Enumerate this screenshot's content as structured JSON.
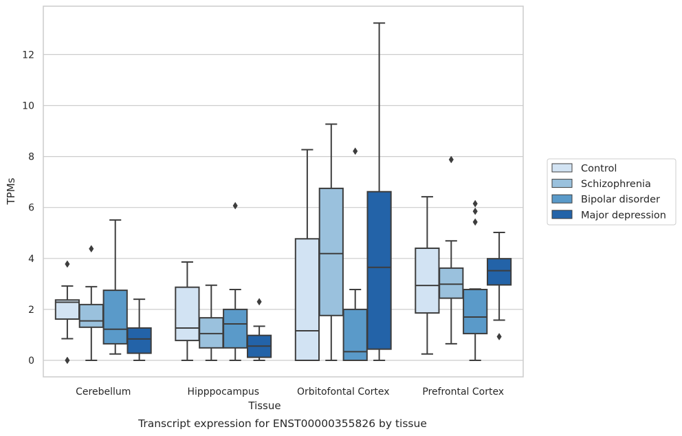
{
  "caption": "Transcript expression for ENST00000355826 by tissue",
  "chart_data": {
    "type": "box",
    "xlabel": "Tissue",
    "ylabel": "TPMs",
    "ylim": [
      -0.65,
      13.9
    ],
    "yticks": [
      0,
      2,
      4,
      6,
      8,
      10,
      12
    ],
    "grid": "horizontal",
    "legend_position": "right",
    "categories": [
      "Cerebellum",
      "Hipppocampus",
      "Orbitofontal Cortex",
      "Prefrontal Cortex"
    ],
    "series": [
      {
        "name": "Control",
        "color": "#d2e3f3",
        "boxes": [
          {
            "whislo": 0.85,
            "q1": 1.62,
            "med": 2.28,
            "q3": 2.37,
            "whishi": 2.92,
            "fliers": [
              3.78,
              0.0
            ]
          },
          {
            "whislo": 0.0,
            "q1": 0.78,
            "med": 1.27,
            "q3": 2.87,
            "whishi": 3.86,
            "fliers": []
          },
          {
            "whislo": 0.0,
            "q1": 0.0,
            "med": 1.16,
            "q3": 4.77,
            "whishi": 8.27,
            "fliers": []
          },
          {
            "whislo": 0.25,
            "q1": 1.86,
            "med": 2.94,
            "q3": 4.4,
            "whishi": 6.42,
            "fliers": []
          }
        ]
      },
      {
        "name": "Schizophrenia",
        "color": "#9ac1dd",
        "boxes": [
          {
            "whislo": 0.0,
            "q1": 1.3,
            "med": 1.55,
            "q3": 2.19,
            "whishi": 2.89,
            "fliers": [
              4.38
            ]
          },
          {
            "whislo": 0.0,
            "q1": 0.49,
            "med": 1.05,
            "q3": 1.67,
            "whishi": 2.95,
            "fliers": []
          },
          {
            "whislo": 0.0,
            "q1": 1.76,
            "med": 4.19,
            "q3": 6.75,
            "whishi": 9.27,
            "fliers": []
          },
          {
            "whislo": 0.65,
            "q1": 2.44,
            "med": 2.99,
            "q3": 3.62,
            "whishi": 4.69,
            "fliers": [
              7.88
            ]
          }
        ]
      },
      {
        "name": "Bipolar disorder",
        "color": "#5a9ac9",
        "boxes": [
          {
            "whislo": 0.25,
            "q1": 0.65,
            "med": 1.22,
            "q3": 2.75,
            "whishi": 5.51,
            "fliers": []
          },
          {
            "whislo": 0.0,
            "q1": 0.49,
            "med": 1.43,
            "q3": 2.0,
            "whishi": 2.78,
            "fliers": [
              6.07
            ]
          },
          {
            "whislo": 0.0,
            "q1": 0.0,
            "med": 0.34,
            "q3": 2.0,
            "whishi": 2.78,
            "fliers": [
              8.21
            ]
          },
          {
            "whislo": 0.0,
            "q1": 1.05,
            "med": 1.7,
            "q3": 2.78,
            "whishi": 2.8,
            "fliers": [
              6.15,
              5.85,
              5.43
            ]
          }
        ]
      },
      {
        "name": "Major depression",
        "color": "#2363a8",
        "boxes": [
          {
            "whislo": 0.0,
            "q1": 0.28,
            "med": 0.84,
            "q3": 1.27,
            "whishi": 2.4,
            "fliers": []
          },
          {
            "whislo": 0.0,
            "q1": 0.12,
            "med": 0.56,
            "q3": 0.98,
            "whishi": 1.34,
            "fliers": [
              2.3
            ]
          },
          {
            "whislo": 0.0,
            "q1": 0.44,
            "med": 3.65,
            "q3": 6.62,
            "whishi": 13.24,
            "fliers": []
          },
          {
            "whislo": 1.58,
            "q1": 2.96,
            "med": 3.52,
            "q3": 3.99,
            "whishi": 5.02,
            "fliers": [
              0.93
            ]
          }
        ]
      }
    ]
  }
}
